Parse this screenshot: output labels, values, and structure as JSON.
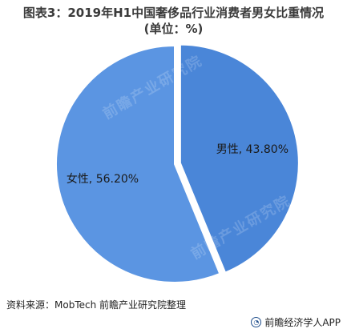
{
  "title": {
    "line1": "图表3：2019年H1中国奢侈品行业消费者男女比重情况",
    "line2": "(单位：%)"
  },
  "chart_data": {
    "type": "pie",
    "unit": "%",
    "slices": [
      {
        "label": "男性",
        "value": 43.8,
        "display": "男性, 43.80%",
        "color": "#4a86d8",
        "exploded": true
      },
      {
        "label": "女性",
        "value": 56.2,
        "display": "女性, 56.20%",
        "color": "#5b95e2",
        "exploded": false
      }
    ],
    "start": "12 o'clock",
    "direction": "clockwise"
  },
  "watermark": "前瞻产业研究院",
  "source": "资料来源：MobTech 前瞻产业研究院整理",
  "brand": {
    "icon": "qianzhan-logo-icon",
    "text": "前瞻经济学人APP"
  }
}
